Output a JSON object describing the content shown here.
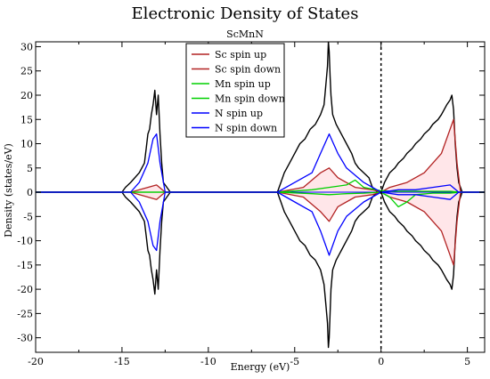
{
  "chart_data": {
    "type": "line",
    "title": "Electronic Density of States",
    "subtitle": "ScMnN",
    "xlabel": "Energy (eV)",
    "ylabel": "Density (states/eV)",
    "xlim": [
      -20,
      6
    ],
    "ylim": [
      -33,
      31
    ],
    "xticks": [
      -20,
      -15,
      -10,
      -5,
      0,
      5
    ],
    "yticks": [
      -30,
      -25,
      -20,
      -15,
      -10,
      -5,
      0,
      5,
      10,
      15,
      20,
      25,
      30
    ],
    "fermi_level": 0,
    "legend_position": "top-center",
    "colors": {
      "total": "#000000",
      "sc": "#b22222",
      "mn": "#00d000",
      "n": "#0000ff",
      "fill": "#ffb6c1"
    },
    "legend": [
      {
        "label": "Sc spin up",
        "color": "#b22222"
      },
      {
        "label": "Sc spin down",
        "color": "#b22222"
      },
      {
        "label": "Mn spin up",
        "color": "#00d000"
      },
      {
        "label": "Mn spin down",
        "color": "#00d000"
      },
      {
        "label": "N spin up",
        "color": "#0000ff"
      },
      {
        "label": "N spin down",
        "color": "#0000ff"
      }
    ],
    "series": [
      {
        "color": "#000000",
        "x": [
          -20,
          -15,
          -14.8,
          -14.5,
          -14.0,
          -13.7,
          -13.6,
          -13.5,
          -13.4,
          -13.3,
          -13.2,
          -13.1,
          -13.0,
          -12.9,
          -12.8,
          -12.7,
          -12.6,
          -12.2,
          -6.0,
          -5.9,
          -5.8,
          -5.6,
          -5.3,
          -5.0,
          -4.7,
          -4.4,
          -4.1,
          -3.8,
          -3.5,
          -3.3,
          -3.2,
          -3.1,
          -3.05,
          -3.0,
          -2.95,
          -2.9,
          -2.8,
          -2.6,
          -2.3,
          -2.0,
          -1.7,
          -1.5,
          -1.3,
          -1.0,
          -0.7,
          -0.5,
          -0.2,
          0.0,
          0.2,
          0.5,
          0.8,
          1.0,
          1.3,
          1.5,
          1.8,
          2.0,
          2.3,
          2.5,
          2.8,
          3.0,
          3.3,
          3.5,
          3.8,
          4.0,
          4.1,
          4.2,
          4.3,
          4.4,
          4.5,
          4.6,
          4.7,
          6
        ],
        "y": [
          0,
          0,
          1,
          2,
          4,
          6,
          9,
          12,
          13,
          16,
          18,
          21,
          16,
          20,
          12,
          6,
          2,
          0,
          0,
          1,
          2,
          4,
          6,
          8,
          10,
          11,
          13,
          14,
          16,
          18,
          22,
          26,
          31,
          29,
          24,
          20,
          16,
          14,
          12,
          10,
          8,
          6,
          5,
          4,
          3,
          1,
          0,
          0,
          2,
          4,
          5,
          6,
          7,
          8,
          9,
          10,
          11,
          12,
          13,
          14,
          15,
          16,
          18,
          19,
          20,
          17,
          10,
          5,
          2,
          1,
          0,
          0
        ]
      },
      {
        "color": "#000000",
        "x": [
          -20,
          -15,
          -14.8,
          -14.5,
          -14.0,
          -13.7,
          -13.6,
          -13.5,
          -13.4,
          -13.3,
          -13.2,
          -13.1,
          -13.0,
          -12.9,
          -12.8,
          -12.7,
          -12.6,
          -12.2,
          -6.0,
          -5.9,
          -5.8,
          -5.6,
          -5.3,
          -5.0,
          -4.7,
          -4.4,
          -4.1,
          -3.8,
          -3.5,
          -3.3,
          -3.2,
          -3.1,
          -3.05,
          -3.0,
          -2.95,
          -2.9,
          -2.8,
          -2.6,
          -2.3,
          -2.0,
          -1.7,
          -1.5,
          -1.3,
          -1.0,
          -0.7,
          -0.5,
          -0.2,
          0.0,
          0.2,
          0.5,
          0.8,
          1.0,
          1.3,
          1.5,
          1.8,
          2.0,
          2.3,
          2.5,
          2.8,
          3.0,
          3.3,
          3.5,
          3.8,
          4.0,
          4.1,
          4.2,
          4.3,
          4.4,
          4.5,
          4.6,
          4.7,
          6
        ],
        "y": [
          0,
          0,
          -1,
          -2,
          -4,
          -6,
          -9,
          -12,
          -13,
          -16,
          -18,
          -21,
          -16,
          -20,
          -12,
          -6,
          -2,
          0,
          0,
          -1,
          -2,
          -4,
          -6,
          -8,
          -10,
          -11,
          -13,
          -14,
          -16,
          -19,
          -23,
          -27,
          -32,
          -30,
          -25,
          -20,
          -16,
          -14,
          -12,
          -10,
          -8,
          -6,
          -5,
          -4,
          -3,
          -1,
          0,
          0,
          -2,
          -4,
          -5,
          -6,
          -7,
          -8,
          -9,
          -10,
          -11,
          -12,
          -13,
          -14,
          -15,
          -16,
          -18,
          -19,
          -20,
          -17,
          -10,
          -5,
          -2,
          -1,
          0,
          0
        ]
      },
      {
        "name": "Sc spin up",
        "color": "#b22222",
        "x": [
          -20,
          -14.5,
          -13.5,
          -13,
          -12.5,
          -6,
          -4.5,
          -3.5,
          -3,
          -2.5,
          -1.5,
          -0.5,
          0,
          0.5,
          1.5,
          2.5,
          3.5,
          4.2,
          4.4,
          4.6,
          6
        ],
        "y": [
          0,
          0,
          1,
          1.5,
          0,
          0,
          1,
          4,
          5,
          3,
          1,
          0.5,
          0,
          1,
          2,
          4,
          8,
          15,
          6,
          0,
          0
        ]
      },
      {
        "name": "Sc spin down",
        "color": "#b22222",
        "x": [
          -20,
          -14.5,
          -13.5,
          -13,
          -12.5,
          -6,
          -4.5,
          -3.5,
          -3,
          -2.5,
          -1.5,
          -0.5,
          0,
          0.5,
          1.5,
          2.5,
          3.5,
          4.2,
          4.4,
          4.6,
          6
        ],
        "y": [
          0,
          0,
          -1,
          -1.5,
          0,
          0,
          -1,
          -4,
          -6,
          -3,
          -1,
          -0.5,
          0,
          -1,
          -2,
          -4,
          -8,
          -15,
          -6,
          0,
          0
        ]
      },
      {
        "name": "Mn spin up",
        "color": "#00d000",
        "x": [
          -20,
          -6,
          -4,
          -3,
          -2,
          -1.5,
          -1,
          0,
          1,
          2,
          3,
          4,
          4.6,
          6
        ],
        "y": [
          0,
          0,
          0.5,
          1,
          1.5,
          2.5,
          1,
          0.3,
          0.2,
          0.2,
          0.2,
          0.2,
          0,
          0
        ]
      },
      {
        "name": "Mn spin down",
        "color": "#00d000",
        "x": [
          -20,
          -6,
          -4,
          -3,
          -2,
          -1,
          0,
          0.5,
          1,
          1.5,
          2,
          3,
          4,
          4.6,
          6
        ],
        "y": [
          0,
          0,
          -0.3,
          -0.5,
          -0.3,
          -0.2,
          0,
          -1,
          -3,
          -2,
          -0.5,
          -0.2,
          -0.2,
          0,
          0
        ]
      },
      {
        "name": "N spin up",
        "color": "#0000ff",
        "x": [
          -20,
          -14.5,
          -14,
          -13.5,
          -13.2,
          -13,
          -12.8,
          -12.5,
          -6,
          -5,
          -4,
          -3.5,
          -3,
          -2.5,
          -2,
          -1,
          0,
          1,
          2,
          3,
          4,
          4.5,
          6
        ],
        "y": [
          0,
          0,
          2,
          6,
          11,
          12,
          6,
          0,
          0,
          2,
          4,
          8,
          12,
          8,
          5,
          2,
          0,
          0.5,
          0.5,
          1,
          1.5,
          0,
          0
        ]
      },
      {
        "name": "N spin down",
        "color": "#0000ff",
        "x": [
          -20,
          -14.5,
          -14,
          -13.5,
          -13.2,
          -13,
          -12.8,
          -12.5,
          -6,
          -5,
          -4,
          -3.5,
          -3,
          -2.5,
          -2,
          -1,
          0,
          1,
          2,
          3,
          4,
          4.5,
          6
        ],
        "y": [
          0,
          0,
          -2,
          -6,
          -11,
          -12,
          -6,
          0,
          0,
          -2,
          -4,
          -8,
          -13,
          -8,
          -5,
          -2,
          0,
          -0.5,
          -0.5,
          -1,
          -1.5,
          0,
          0
        ]
      }
    ]
  }
}
